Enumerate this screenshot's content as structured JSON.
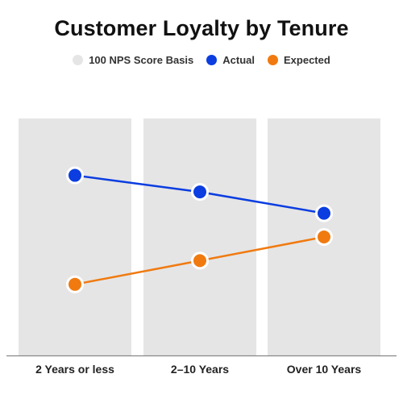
{
  "chart_data": {
    "type": "line",
    "title": "Customer Loyalty by Tenure",
    "categories": [
      "2 Years or less",
      "2–10 Years",
      "Over 10 Years"
    ],
    "ylim": [
      0,
      100
    ],
    "background_bars": {
      "name": "100 NPS Score Basis",
      "values": [
        100,
        100,
        100
      ]
    },
    "series": [
      {
        "name": "Actual",
        "values": [
          76,
          69,
          60
        ]
      },
      {
        "name": "Expected",
        "values": [
          30,
          40,
          50
        ]
      }
    ],
    "legend": [
      {
        "label": "100 NPS Score Basis",
        "color": "#e5e5e5"
      },
      {
        "label": "Actual",
        "color": "#0b3de0"
      },
      {
        "label": "Expected",
        "color": "#f07a10"
      }
    ],
    "colors": {
      "bar": "#e5e5e5",
      "actual": "#0b3de0",
      "expected": "#f07a10",
      "axis": "#888888"
    },
    "grid": false,
    "legend_placement": "top-center"
  }
}
